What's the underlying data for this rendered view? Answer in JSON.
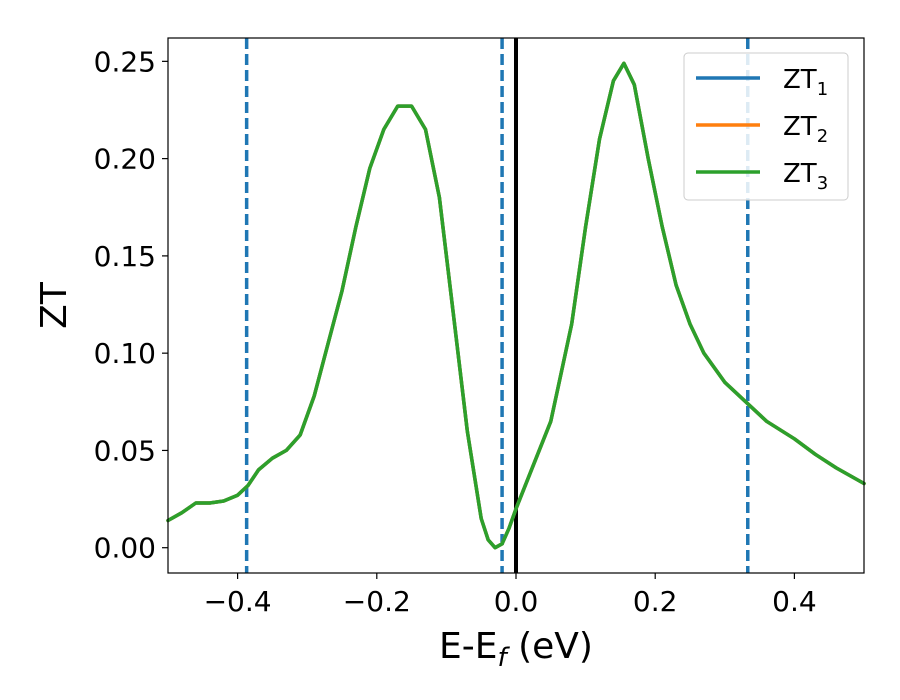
{
  "chart_data": {
    "type": "line",
    "xlabel": "E-E_f (eV)",
    "ylabel": "ZT",
    "xlim": [
      -0.5,
      0.5
    ],
    "ylim": [
      -0.013,
      0.262
    ],
    "xticks": [
      -0.4,
      -0.2,
      0.0,
      0.2,
      0.4
    ],
    "xtick_labels": [
      "−0.4",
      "−0.2",
      "0.0",
      "0.2",
      "0.4"
    ],
    "yticks": [
      0.0,
      0.05,
      0.1,
      0.15,
      0.2,
      0.25
    ],
    "ytick_labels": [
      "0.00",
      "0.05",
      "0.10",
      "0.15",
      "0.20",
      "0.25"
    ],
    "grid": false,
    "legend_position": "top-right",
    "x": [
      -0.5,
      -0.48,
      -0.46,
      -0.44,
      -0.42,
      -0.4,
      -0.385,
      -0.37,
      -0.35,
      -0.33,
      -0.31,
      -0.29,
      -0.27,
      -0.25,
      -0.23,
      -0.21,
      -0.19,
      -0.17,
      -0.15,
      -0.13,
      -0.11,
      -0.09,
      -0.07,
      -0.05,
      -0.04,
      -0.03,
      -0.02,
      -0.01,
      0.0,
      0.02,
      0.05,
      0.08,
      0.1,
      0.12,
      0.14,
      0.155,
      0.17,
      0.19,
      0.21,
      0.23,
      0.25,
      0.27,
      0.3,
      0.33,
      0.36,
      0.4,
      0.43,
      0.46,
      0.5
    ],
    "series": [
      {
        "name": "ZT_1",
        "label_base": "ZT",
        "label_sub": "1",
        "color": "#1f77b4",
        "values": [
          0.014,
          0.018,
          0.023,
          0.023,
          0.024,
          0.027,
          0.032,
          0.04,
          0.046,
          0.05,
          0.058,
          0.078,
          0.105,
          0.132,
          0.165,
          0.195,
          0.215,
          0.227,
          0.227,
          0.215,
          0.18,
          0.12,
          0.06,
          0.015,
          0.004,
          0.0,
          0.002,
          0.01,
          0.02,
          0.038,
          0.065,
          0.115,
          0.165,
          0.21,
          0.24,
          0.249,
          0.238,
          0.2,
          0.165,
          0.135,
          0.115,
          0.1,
          0.085,
          0.075,
          0.065,
          0.056,
          0.048,
          0.041,
          0.033
        ]
      },
      {
        "name": "ZT_2",
        "label_base": "ZT",
        "label_sub": "2",
        "color": "#ff7f0e",
        "values": [
          0.014,
          0.018,
          0.023,
          0.023,
          0.024,
          0.027,
          0.032,
          0.04,
          0.046,
          0.05,
          0.058,
          0.078,
          0.105,
          0.132,
          0.165,
          0.195,
          0.215,
          0.227,
          0.227,
          0.215,
          0.18,
          0.12,
          0.06,
          0.015,
          0.004,
          0.0,
          0.002,
          0.01,
          0.02,
          0.038,
          0.065,
          0.115,
          0.165,
          0.21,
          0.24,
          0.249,
          0.238,
          0.2,
          0.165,
          0.135,
          0.115,
          0.1,
          0.085,
          0.075,
          0.065,
          0.056,
          0.048,
          0.041,
          0.033
        ]
      },
      {
        "name": "ZT_3",
        "label_base": "ZT",
        "label_sub": "3",
        "color": "#2ca02c",
        "values": [
          0.014,
          0.018,
          0.023,
          0.023,
          0.024,
          0.027,
          0.032,
          0.04,
          0.046,
          0.05,
          0.058,
          0.078,
          0.105,
          0.132,
          0.165,
          0.195,
          0.215,
          0.227,
          0.227,
          0.215,
          0.18,
          0.12,
          0.06,
          0.015,
          0.004,
          0.0,
          0.002,
          0.01,
          0.02,
          0.038,
          0.065,
          0.115,
          0.165,
          0.21,
          0.24,
          0.249,
          0.238,
          0.2,
          0.165,
          0.135,
          0.115,
          0.1,
          0.085,
          0.075,
          0.065,
          0.056,
          0.048,
          0.041,
          0.033
        ]
      }
    ],
    "vertical_lines": [
      {
        "x": -0.387,
        "style": "dashed",
        "color": "#1f77b4"
      },
      {
        "x": -0.02,
        "style": "dashed",
        "color": "#1f77b4"
      },
      {
        "x": 0.0,
        "style": "solid",
        "color": "#000000"
      },
      {
        "x": 0.333,
        "style": "dashed",
        "color": "#1f77b4"
      }
    ]
  }
}
